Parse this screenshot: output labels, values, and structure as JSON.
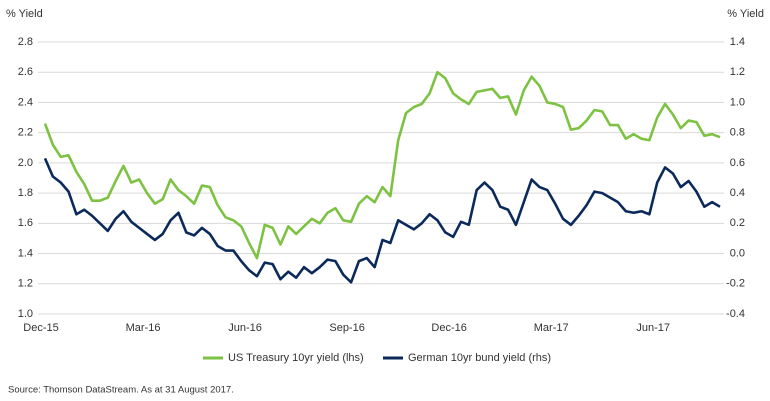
{
  "chart_data": {
    "type": "line",
    "y_label": "% Yield",
    "y2_label": "% Yield",
    "source": "Source: Thomson DataStream. As at 31 August 2017.",
    "categories": [
      "Dec-15",
      null,
      null,
      null,
      null,
      null,
      null,
      null,
      null,
      null,
      null,
      null,
      null,
      "Mar-16",
      null,
      null,
      null,
      null,
      null,
      null,
      null,
      null,
      null,
      null,
      null,
      null,
      "Jun-16",
      null,
      null,
      null,
      null,
      null,
      null,
      null,
      null,
      null,
      null,
      null,
      null,
      "Sep-16",
      null,
      null,
      null,
      null,
      null,
      null,
      null,
      null,
      null,
      null,
      null,
      null,
      "Dec-16",
      null,
      null,
      null,
      null,
      null,
      null,
      null,
      null,
      null,
      null,
      null,
      null,
      "Mar-17",
      null,
      null,
      null,
      null,
      null,
      null,
      null,
      null,
      null,
      null,
      null,
      null,
      "Jun-17",
      null,
      null,
      null,
      null,
      null,
      null,
      null,
      null
    ],
    "series": [
      {
        "name": "US Treasury 10yr yield (lhs)",
        "color": "#7dc242",
        "axis": "y",
        "values": [
          2.26,
          2.12,
          2.04,
          2.05,
          1.94,
          1.86,
          1.75,
          1.75,
          1.77,
          1.88,
          1.98,
          1.87,
          1.89,
          1.8,
          1.73,
          1.76,
          1.89,
          1.82,
          1.78,
          1.73,
          1.85,
          1.84,
          1.72,
          1.64,
          1.62,
          1.58,
          1.47,
          1.37,
          1.59,
          1.57,
          1.46,
          1.58,
          1.53,
          1.58,
          1.63,
          1.6,
          1.67,
          1.7,
          1.62,
          1.61,
          1.73,
          1.78,
          1.74,
          1.84,
          1.78,
          2.15,
          2.33,
          2.37,
          2.39,
          2.46,
          2.6,
          2.56,
          2.46,
          2.42,
          2.39,
          2.47,
          2.48,
          2.49,
          2.43,
          2.44,
          2.32,
          2.48,
          2.57,
          2.51,
          2.4,
          2.39,
          2.37,
          2.22,
          2.23,
          2.28,
          2.35,
          2.34,
          2.25,
          2.25,
          2.16,
          2.19,
          2.16,
          2.15,
          2.3,
          2.39,
          2.32,
          2.23,
          2.28,
          2.27,
          2.18,
          2.19,
          2.17
        ]
      },
      {
        "name": "German 10yr bund yield (rhs)",
        "color": "#0b2a5b",
        "axis": "y2",
        "values": [
          0.63,
          0.51,
          0.47,
          0.41,
          0.26,
          0.29,
          0.25,
          0.2,
          0.15,
          0.23,
          0.28,
          0.21,
          0.17,
          0.13,
          0.09,
          0.13,
          0.22,
          0.27,
          0.14,
          0.12,
          0.17,
          0.13,
          0.05,
          0.02,
          0.02,
          -0.05,
          -0.11,
          -0.15,
          -0.06,
          -0.07,
          -0.17,
          -0.12,
          -0.16,
          -0.09,
          -0.13,
          -0.09,
          -0.04,
          -0.05,
          -0.14,
          -0.19,
          -0.05,
          -0.03,
          -0.09,
          0.09,
          0.07,
          0.22,
          0.19,
          0.16,
          0.2,
          0.26,
          0.22,
          0.14,
          0.11,
          0.21,
          0.19,
          0.42,
          0.47,
          0.42,
          0.31,
          0.29,
          0.19,
          0.34,
          0.49,
          0.44,
          0.42,
          0.33,
          0.23,
          0.19,
          0.25,
          0.32,
          0.41,
          0.4,
          0.37,
          0.34,
          0.28,
          0.27,
          0.28,
          0.26,
          0.47,
          0.57,
          0.53,
          0.44,
          0.48,
          0.41,
          0.31,
          0.34,
          0.31
        ]
      }
    ],
    "ylim": [
      1,
      2.8
    ],
    "yticks": [
      {
        "value": 1,
        "label": "1.0"
      },
      1.2,
      1.4,
      1.6,
      1.8,
      {
        "value": 2,
        "label": "2.0"
      },
      2.2,
      2.4,
      2.6,
      2.8
    ],
    "y2lim": [
      -0.4,
      1.4
    ],
    "y2ticks": [
      -0.4,
      -0.2,
      {
        "value": 0,
        "label": "0.0"
      },
      0.2,
      0.4,
      0.6,
      0.8,
      {
        "value": 1,
        "label": "1.0"
      },
      1.2,
      1.4
    ],
    "grid": true
  }
}
